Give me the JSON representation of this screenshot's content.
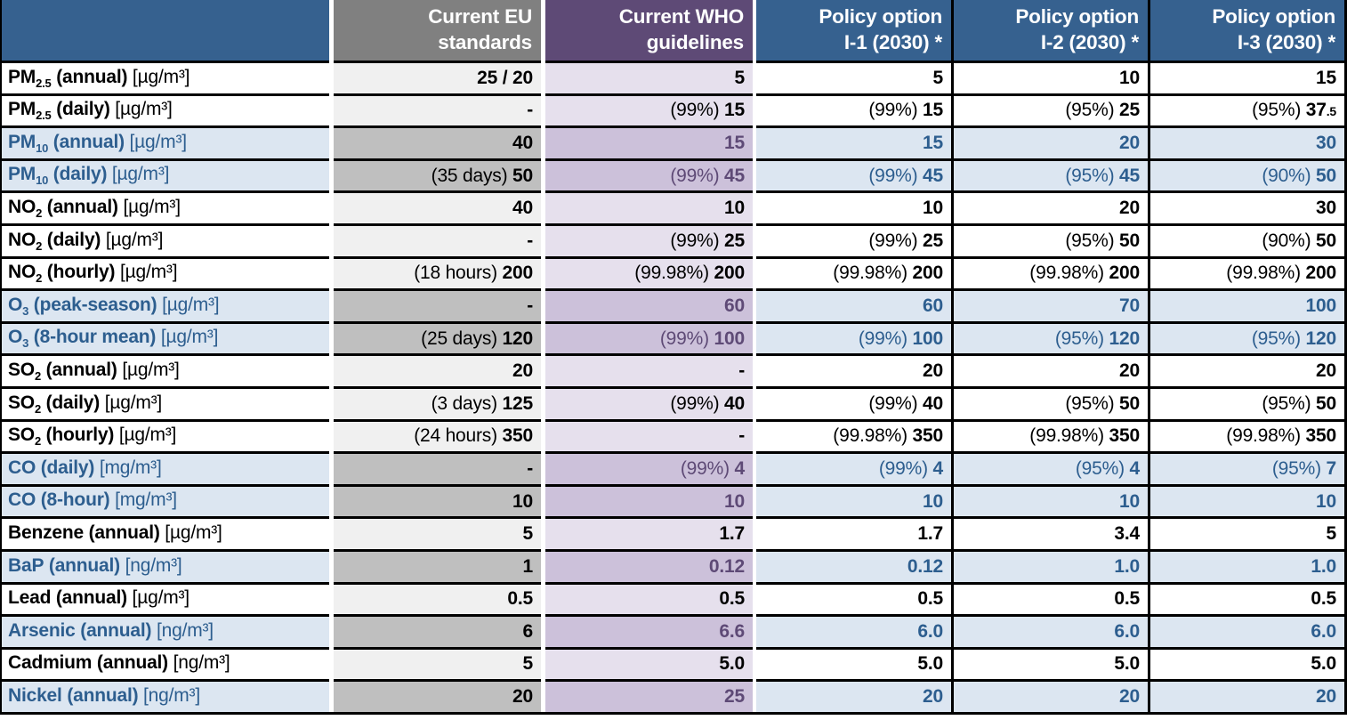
{
  "header": {
    "label": "",
    "columns": [
      {
        "line1": "Current EU",
        "line2": "standards"
      },
      {
        "line1": "Current WHO",
        "line2": "guidelines"
      },
      {
        "line1": "Policy option",
        "line2": "I-1 (2030) *"
      },
      {
        "line1": "Policy option",
        "line2": "I-2 (2030) *"
      },
      {
        "line1": "Policy option",
        "line2": "I-3 (2030) *"
      }
    ]
  },
  "rows": [
    {
      "label": {
        "base": "PM",
        "sub": "2.5",
        "rest": " (annual)",
        "unit": " [µg/m³]"
      },
      "highlight": false,
      "cells": [
        {
          "prefix": "",
          "value": "25 / 20"
        },
        {
          "prefix": "",
          "value": "5"
        },
        {
          "prefix": "",
          "value": "5"
        },
        {
          "prefix": "",
          "value": "10"
        },
        {
          "prefix": "",
          "value": "15"
        }
      ]
    },
    {
      "label": {
        "base": "PM",
        "sub": "2.5",
        "rest": " (daily)",
        "unit": " [µg/m³]"
      },
      "highlight": false,
      "cells": [
        {
          "prefix": "",
          "value": "-"
        },
        {
          "prefix": "(99%) ",
          "value": "15"
        },
        {
          "prefix": "(99%) ",
          "value": "15"
        },
        {
          "prefix": "(95%) ",
          "value": "25"
        },
        {
          "prefix": "(95%) ",
          "value": "37",
          "suffix_small": ".5"
        }
      ]
    },
    {
      "label": {
        "base": "PM",
        "sub": "10",
        "rest": " (annual)",
        "unit": " [µg/m³]"
      },
      "highlight": true,
      "cells": [
        {
          "prefix": "",
          "value": "40"
        },
        {
          "prefix": "",
          "value": "15"
        },
        {
          "prefix": "",
          "value": "15"
        },
        {
          "prefix": "",
          "value": "20"
        },
        {
          "prefix": "",
          "value": "30"
        }
      ]
    },
    {
      "label": {
        "base": "PM",
        "sub": "10",
        "rest": " (daily)",
        "unit": " [µg/m³]"
      },
      "highlight": true,
      "cells": [
        {
          "prefix": "(35 days) ",
          "value": "50"
        },
        {
          "prefix": "(99%) ",
          "value": "45"
        },
        {
          "prefix": "(99%) ",
          "value": "45"
        },
        {
          "prefix": "(95%) ",
          "value": "45"
        },
        {
          "prefix": "(90%) ",
          "value": "50"
        }
      ]
    },
    {
      "label": {
        "base": "NO",
        "sub": "2",
        "rest": " (annual)",
        "unit": " [µg/m³]"
      },
      "highlight": false,
      "cells": [
        {
          "prefix": "",
          "value": "40"
        },
        {
          "prefix": "",
          "value": "10"
        },
        {
          "prefix": "",
          "value": "10"
        },
        {
          "prefix": "",
          "value": "20"
        },
        {
          "prefix": "",
          "value": "30"
        }
      ]
    },
    {
      "label": {
        "base": "NO",
        "sub": "2",
        "rest": " (daily)",
        "unit": " [µg/m³]"
      },
      "highlight": false,
      "cells": [
        {
          "prefix": "",
          "value": "-"
        },
        {
          "prefix": "(99%) ",
          "value": "25"
        },
        {
          "prefix": "(99%) ",
          "value": "25"
        },
        {
          "prefix": "(95%) ",
          "value": "50"
        },
        {
          "prefix": "(90%) ",
          "value": "50"
        }
      ]
    },
    {
      "label": {
        "base": "NO",
        "sub": "2",
        "rest": " (hourly)",
        "unit": " [µg/m³]"
      },
      "highlight": false,
      "cells": [
        {
          "prefix": "(18 hours) ",
          "value": "200"
        },
        {
          "prefix": "(99.98%) ",
          "value": "200"
        },
        {
          "prefix": "(99.98%) ",
          "value": "200"
        },
        {
          "prefix": "(99.98%) ",
          "value": "200"
        },
        {
          "prefix": "(99.98%) ",
          "value": "200"
        }
      ]
    },
    {
      "label": {
        "base": "O",
        "sub": "3",
        "rest": " (peak-season)",
        "unit": " [µg/m³]"
      },
      "highlight": true,
      "cells": [
        {
          "prefix": "",
          "value": "-"
        },
        {
          "prefix": "",
          "value": "60"
        },
        {
          "prefix": "",
          "value": "60"
        },
        {
          "prefix": "",
          "value": "70"
        },
        {
          "prefix": "",
          "value": "100"
        }
      ]
    },
    {
      "label": {
        "base": "O",
        "sub": "3",
        "rest": " (8-hour mean)",
        "unit": " [µg/m³]"
      },
      "highlight": true,
      "cells": [
        {
          "prefix": "(25 days) ",
          "value": "120"
        },
        {
          "prefix": "(99%) ",
          "value": "100"
        },
        {
          "prefix": "(99%) ",
          "value": "100"
        },
        {
          "prefix": "(95%) ",
          "value": "120"
        },
        {
          "prefix": "(95%) ",
          "value": "120"
        }
      ]
    },
    {
      "label": {
        "base": "SO",
        "sub": "2",
        "rest": " (annual)",
        "unit": " [µg/m³]"
      },
      "highlight": false,
      "cells": [
        {
          "prefix": "",
          "value": "20"
        },
        {
          "prefix": "",
          "value": "-"
        },
        {
          "prefix": "",
          "value": "20"
        },
        {
          "prefix": "",
          "value": "20"
        },
        {
          "prefix": "",
          "value": "20"
        }
      ]
    },
    {
      "label": {
        "base": "SO",
        "sub": "2",
        "rest": " (daily)",
        "unit": " [µg/m³]"
      },
      "highlight": false,
      "cells": [
        {
          "prefix": "(3 days) ",
          "value": "125"
        },
        {
          "prefix": "(99%) ",
          "value": "40"
        },
        {
          "prefix": "(99%) ",
          "value": "40"
        },
        {
          "prefix": "(95%) ",
          "value": "50"
        },
        {
          "prefix": "(95%) ",
          "value": "50"
        }
      ]
    },
    {
      "label": {
        "base": "SO",
        "sub": "2",
        "rest": " (hourly)",
        "unit": " [µg/m³]"
      },
      "highlight": false,
      "cells": [
        {
          "prefix": "(24 hours) ",
          "value": "350"
        },
        {
          "prefix": "",
          "value": "-"
        },
        {
          "prefix": "(99.98%) ",
          "value": "350"
        },
        {
          "prefix": "(99.98%) ",
          "value": "350"
        },
        {
          "prefix": "(99.98%) ",
          "value": "350"
        }
      ]
    },
    {
      "label": {
        "base": "CO",
        "sub": "",
        "rest": " (daily)",
        "unit": " [mg/m³]"
      },
      "highlight": true,
      "cells": [
        {
          "prefix": "",
          "value": "-"
        },
        {
          "prefix": "(99%) ",
          "value": "4"
        },
        {
          "prefix": "(99%) ",
          "value": "4"
        },
        {
          "prefix": "(95%) ",
          "value": "4"
        },
        {
          "prefix": "(95%) ",
          "value": "7"
        }
      ]
    },
    {
      "label": {
        "base": "CO",
        "sub": "",
        "rest": " (8-hour)",
        "unit": " [mg/m³]"
      },
      "highlight": true,
      "cells": [
        {
          "prefix": "",
          "value": "10"
        },
        {
          "prefix": "",
          "value": "10"
        },
        {
          "prefix": "",
          "value": "10"
        },
        {
          "prefix": "",
          "value": "10"
        },
        {
          "prefix": "",
          "value": "10"
        }
      ]
    },
    {
      "label": {
        "base": "Benzene",
        "sub": "",
        "rest": " (annual)",
        "unit": " [µg/m³]"
      },
      "highlight": false,
      "cells": [
        {
          "prefix": "",
          "value": "5"
        },
        {
          "prefix": "",
          "value": "1.7"
        },
        {
          "prefix": "",
          "value": "1.7"
        },
        {
          "prefix": "",
          "value": "3.4"
        },
        {
          "prefix": "",
          "value": "5"
        }
      ]
    },
    {
      "label": {
        "base": "BaP",
        "sub": "",
        "rest": " (annual)",
        "unit": " [ng/m³]"
      },
      "highlight": true,
      "cells": [
        {
          "prefix": "",
          "value": "1"
        },
        {
          "prefix": "",
          "value": "0.12"
        },
        {
          "prefix": "",
          "value": "0.12"
        },
        {
          "prefix": "",
          "value": "1.0"
        },
        {
          "prefix": "",
          "value": "1.0"
        }
      ]
    },
    {
      "label": {
        "base": "Lead",
        "sub": "",
        "rest": " (annual)",
        "unit": " [µg/m³]"
      },
      "highlight": false,
      "cells": [
        {
          "prefix": "",
          "value": "0.5"
        },
        {
          "prefix": "",
          "value": "0.5"
        },
        {
          "prefix": "",
          "value": "0.5"
        },
        {
          "prefix": "",
          "value": "0.5"
        },
        {
          "prefix": "",
          "value": "0.5"
        }
      ]
    },
    {
      "label": {
        "base": "Arsenic",
        "sub": "",
        "rest": " (annual)",
        "unit": " [ng/m³]"
      },
      "highlight": true,
      "cells": [
        {
          "prefix": "",
          "value": "6"
        },
        {
          "prefix": "",
          "value": "6.6"
        },
        {
          "prefix": "",
          "value": "6.0"
        },
        {
          "prefix": "",
          "value": "6.0"
        },
        {
          "prefix": "",
          "value": "6.0"
        }
      ]
    },
    {
      "label": {
        "base": "Cadmium",
        "sub": "",
        "rest": " (annual)",
        "unit": " [ng/m³]"
      },
      "highlight": false,
      "cells": [
        {
          "prefix": "",
          "value": "5"
        },
        {
          "prefix": "",
          "value": "5.0"
        },
        {
          "prefix": "",
          "value": "5.0"
        },
        {
          "prefix": "",
          "value": "5.0"
        },
        {
          "prefix": "",
          "value": "5.0"
        }
      ]
    },
    {
      "label": {
        "base": "Nickel",
        "sub": "",
        "rest": " (annual)",
        "unit": " [ng/m³]"
      },
      "highlight": true,
      "cells": [
        {
          "prefix": "",
          "value": "20"
        },
        {
          "prefix": "",
          "value": "25"
        },
        {
          "prefix": "",
          "value": "20"
        },
        {
          "prefix": "",
          "value": "20"
        },
        {
          "prefix": "",
          "value": "20"
        }
      ]
    }
  ],
  "colors": {
    "header_blue": "#36618F",
    "header_gray": "#808080",
    "header_purple": "#5E4A76",
    "row_highlight_blue": "#DCE6F1",
    "eu_cell_light": "#F0F0F0",
    "eu_cell_dark": "#BFBFBF",
    "who_cell_light": "#E6E0ED",
    "who_cell_dark": "#CCC1DA",
    "text_blue": "#2D5E8F",
    "text_purple": "#5E4A76",
    "border_black": "#000000"
  }
}
